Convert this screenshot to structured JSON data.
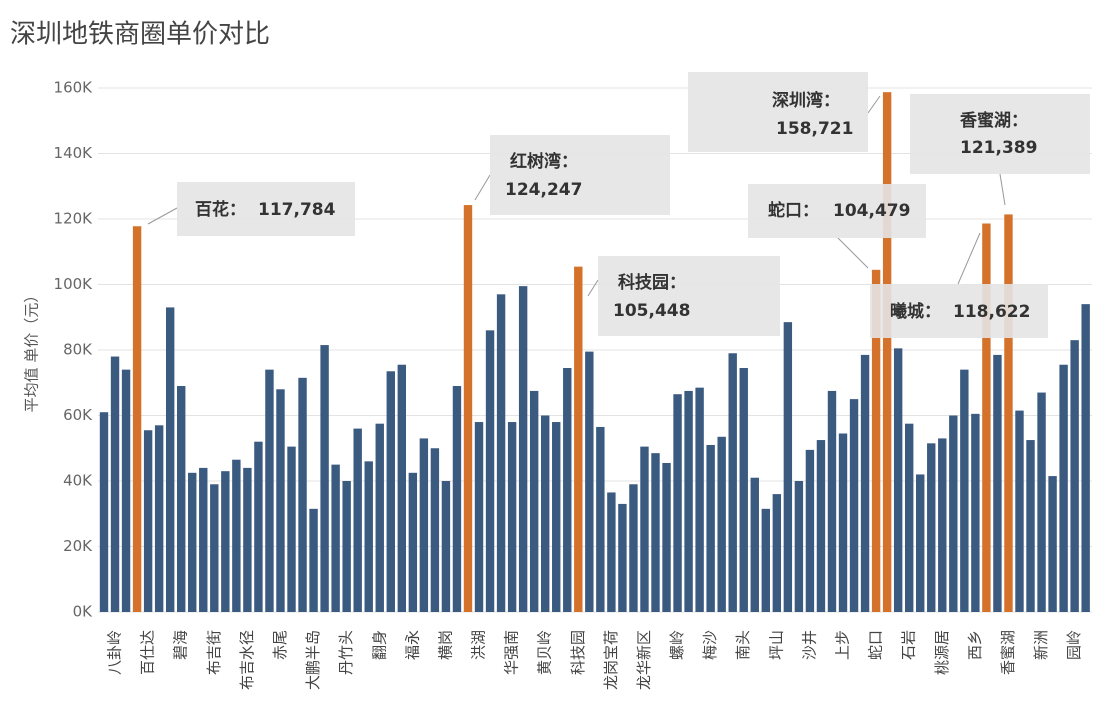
{
  "chart_data": {
    "type": "bar",
    "title": "深圳地铁商圈单价对比",
    "y_label": "平均值 单价（元）",
    "categories": [
      null,
      "八卦岭",
      null,
      null,
      "百仕达",
      null,
      null,
      "碧海",
      null,
      null,
      "布吉街",
      null,
      null,
      "布吉水径",
      null,
      null,
      "赤尾",
      null,
      null,
      "大鹏半岛",
      null,
      null,
      "丹竹头",
      null,
      null,
      "翻身",
      null,
      null,
      "福永",
      null,
      null,
      "横岗",
      null,
      null,
      "洪湖",
      null,
      null,
      "华强南",
      null,
      null,
      "黄贝岭",
      null,
      null,
      "科技园",
      null,
      null,
      "龙岗宝荷",
      null,
      null,
      "龙华新区",
      null,
      null,
      "螺岭",
      null,
      null,
      "梅沙",
      null,
      null,
      "南头",
      null,
      null,
      "坪山",
      null,
      null,
      "沙井",
      null,
      null,
      "上步",
      null,
      null,
      "蛇口",
      null,
      null,
      "石岩",
      null,
      null,
      "桃源居",
      null,
      null,
      "西乡",
      null,
      null,
      "香蜜湖",
      null,
      null,
      "新洲",
      null,
      null,
      "园岭",
      null
    ],
    "values": [
      61000,
      78000,
      74000,
      117784,
      55500,
      57000,
      93000,
      69000,
      42500,
      44000,
      39000,
      43000,
      46500,
      44000,
      52000,
      74000,
      68000,
      50500,
      71500,
      31500,
      81500,
      45000,
      40000,
      56000,
      46000,
      57500,
      73500,
      75500,
      42500,
      53000,
      50000,
      40000,
      69000,
      124247,
      58000,
      86000,
      97000,
      58000,
      99500,
      67500,
      60000,
      58000,
      74500,
      105448,
      79500,
      56500,
      36500,
      33000,
      39000,
      50500,
      48500,
      45500,
      66500,
      67500,
      68500,
      51000,
      53500,
      79000,
      74500,
      41000,
      31500,
      36000,
      88500,
      40000,
      49500,
      52500,
      67500,
      54500,
      65000,
      78500,
      104479,
      158721,
      80500,
      57500,
      42000,
      51500,
      53000,
      60000,
      74000,
      60500,
      118622,
      78500,
      121389,
      61500,
      52500,
      67000,
      41500,
      75500,
      83000,
      94000
    ],
    "annotations": [
      null,
      null,
      null,
      "百花：",
      null,
      null,
      null,
      null,
      null,
      null,
      null,
      null,
      null,
      null,
      null,
      null,
      null,
      null,
      null,
      null,
      null,
      null,
      null,
      null,
      null,
      null,
      null,
      null,
      null,
      null,
      null,
      null,
      null,
      "红树湾：",
      null,
      null,
      null,
      null,
      null,
      null,
      null,
      null,
      null,
      "科技园：",
      null,
      null,
      null,
      null,
      null,
      null,
      null,
      null,
      null,
      null,
      null,
      null,
      null,
      null,
      null,
      null,
      null,
      null,
      null,
      null,
      null,
      null,
      null,
      null,
      null,
      null,
      "蛇口：",
      "深圳湾：",
      null,
      null,
      null,
      null,
      null,
      null,
      null,
      null,
      "曦城：",
      null,
      "香蜜湖：",
      null,
      null,
      null,
      null,
      null,
      null,
      null
    ],
    "value_labels": [
      null,
      null,
      null,
      "117,784",
      null,
      null,
      null,
      null,
      null,
      null,
      null,
      null,
      null,
      null,
      null,
      null,
      null,
      null,
      null,
      null,
      null,
      null,
      null,
      null,
      null,
      null,
      null,
      null,
      null,
      null,
      null,
      null,
      null,
      "124,247",
      null,
      null,
      null,
      null,
      null,
      null,
      null,
      null,
      null,
      "105,448",
      null,
      null,
      null,
      null,
      null,
      null,
      null,
      null,
      null,
      null,
      null,
      null,
      null,
      null,
      null,
      null,
      null,
      null,
      null,
      null,
      null,
      null,
      null,
      null,
      null,
      null,
      "104,479",
      "158,721",
      null,
      null,
      null,
      null,
      null,
      null,
      null,
      null,
      "118,622",
      null,
      "121,389",
      null,
      null,
      null,
      null,
      null,
      null,
      null
    ],
    "color": "#3b5a80",
    "highlight_color": "#d4712a",
    "ylim": [
      0,
      165000
    ],
    "yticks": [
      {
        "value": 0,
        "label": "0K"
      },
      {
        "value": 20000,
        "label": "20K"
      },
      {
        "value": 40000,
        "label": "40K"
      },
      {
        "value": 60000,
        "label": "60K"
      },
      {
        "value": 80000,
        "label": "80K"
      },
      {
        "value": 100000,
        "label": "100K"
      },
      {
        "value": 120000,
        "label": "120K"
      },
      {
        "value": 140000,
        "label": "140K"
      },
      {
        "value": 160000,
        "label": "160K"
      }
    ],
    "grid": true
  }
}
